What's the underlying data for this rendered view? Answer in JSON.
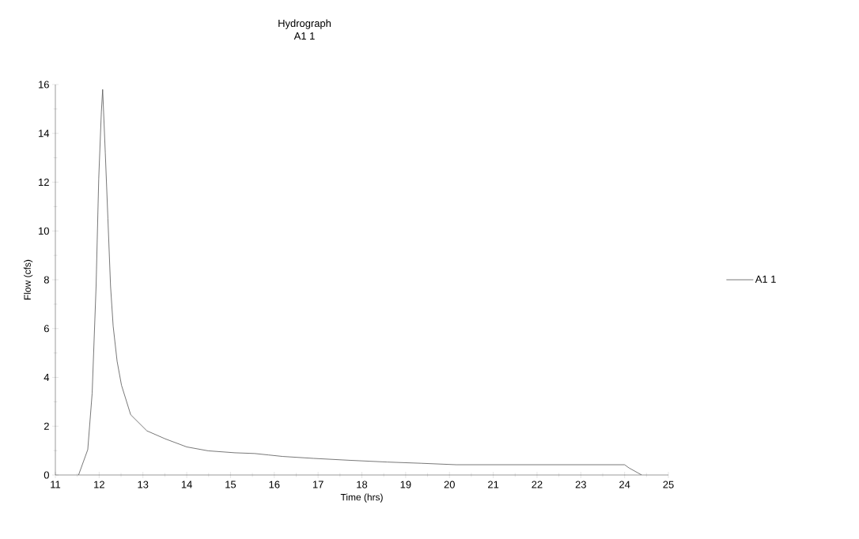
{
  "chart_data": {
    "type": "line",
    "title": "Hydrograph",
    "subtitle": "A1 1",
    "xlabel": "Time (hrs)",
    "ylabel": "Flow (cfs)",
    "xlim": [
      11,
      25
    ],
    "xticks": [
      11,
      12,
      13,
      14,
      15,
      16,
      17,
      18,
      19,
      20,
      21,
      22,
      23,
      24,
      25
    ],
    "ylim": [
      0,
      16
    ],
    "yticks": [
      0,
      2,
      4,
      6,
      8,
      10,
      12,
      14,
      16
    ],
    "grid": false,
    "legend": "right",
    "marker": "none",
    "line_style": "solid",
    "series": [
      {
        "name": "A1 1",
        "color": "#555555",
        "x": [
          11.53,
          11.74,
          11.84,
          11.93,
          11.99,
          12.05,
          12.08,
          12.14,
          12.2,
          12.26,
          12.32,
          12.41,
          12.51,
          12.72,
          13.09,
          13.51,
          14.0,
          14.49,
          15.1,
          15.55,
          15.87,
          16.19,
          16.9,
          17.74,
          18.58,
          19.35,
          20.16,
          24.0,
          24.1,
          24.39
        ],
        "values": [
          0,
          1.04,
          3.35,
          7.74,
          12.13,
          14.87,
          15.8,
          13.2,
          10.5,
          7.74,
          6.1,
          4.66,
          3.68,
          2.47,
          1.81,
          1.48,
          1.15,
          0.99,
          0.91,
          0.88,
          0.82,
          0.76,
          0.68,
          0.6,
          0.53,
          0.48,
          0.42,
          0.42,
          0.29,
          0
        ]
      }
    ]
  }
}
